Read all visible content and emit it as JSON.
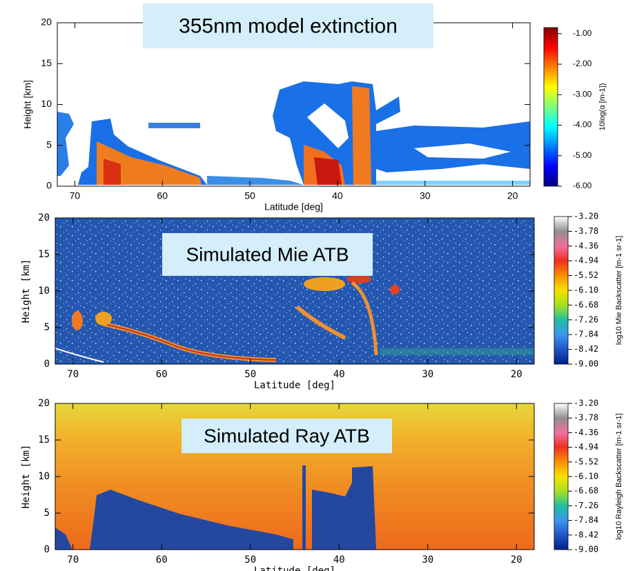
{
  "chart_data": [
    {
      "type": "heatmap",
      "title": "355nm model extinction",
      "xlabel": "Latitude [deg]",
      "ylabel": "Height [km]",
      "xlim": [
        72,
        18
      ],
      "xticks": [
        70,
        60,
        50,
        40,
        30,
        20
      ],
      "ylim": [
        0,
        20
      ],
      "yticks": [
        0,
        5,
        10,
        15,
        20
      ],
      "colorbar_label": "10log(α [m-1])",
      "clim": [
        -6.0,
        -0.8
      ],
      "cticks": [
        {
          "value": -1,
          "label": "-1.00"
        },
        {
          "value": -2,
          "label": "-2.00"
        },
        {
          "value": -3,
          "label": "-3.00"
        },
        {
          "value": -4,
          "label": "-4.00"
        },
        {
          "value": -5,
          "label": "-5.00"
        },
        {
          "value": -6,
          "label": "-6.00"
        }
      ],
      "colormap": [
        "#00007f",
        "#0000ff",
        "#007fff",
        "#00ffff",
        "#7fff7f",
        "#ffff00",
        "#ff7f00",
        "#ff0000",
        "#7f0000"
      ]
    },
    {
      "type": "heatmap",
      "title": "Simulated Mie ATB",
      "xlabel": "Latitude [deg]",
      "ylabel": "Height [km]",
      "xlim": [
        72,
        18
      ],
      "xticks": [
        70,
        60,
        50,
        40,
        30,
        20
      ],
      "ylim": [
        0,
        20
      ],
      "yticks": [
        0,
        5,
        10,
        15,
        20
      ],
      "colorbar_label": "log10 Mie Backscatter [m-1 sr-1]",
      "clim": [
        -9.0,
        -3.2
      ],
      "cticks": [
        {
          "value": -3.2,
          "label": "-3.20"
        },
        {
          "value": -3.78,
          "label": "-3.78"
        },
        {
          "value": -4.36,
          "label": "-4.36"
        },
        {
          "value": -4.94,
          "label": "-4.94"
        },
        {
          "value": -5.52,
          "label": "-5.52"
        },
        {
          "value": -6.1,
          "label": "-6.10"
        },
        {
          "value": -6.68,
          "label": "-6.68"
        },
        {
          "value": -7.26,
          "label": "-7.26"
        },
        {
          "value": -7.84,
          "label": "-7.84"
        },
        {
          "value": -8.42,
          "label": "-8.42"
        },
        {
          "value": -9,
          "label": "-9.00"
        }
      ],
      "colormap": [
        "#00208a",
        "#1f55c8",
        "#3a96f0",
        "#20c0a0",
        "#a8e020",
        "#f8e000",
        "#f89000",
        "#f03020",
        "#f070a0",
        "#909090",
        "#ffffff"
      ]
    },
    {
      "type": "heatmap",
      "title": "Simulated Ray ATB",
      "xlabel": "Latitude [deg]",
      "ylabel": "Height [km]",
      "xlim": [
        72,
        18
      ],
      "xticks": [
        70,
        60,
        50,
        40,
        30,
        20
      ],
      "ylim": [
        0,
        20
      ],
      "yticks": [
        0,
        5,
        10,
        15,
        20
      ],
      "colorbar_label": "log10 Rayleigh Backscatter [m-1 sr-1]",
      "clim": [
        -9.0,
        -3.2
      ],
      "cticks": [
        {
          "value": -3.2,
          "label": "-3.20"
        },
        {
          "value": -3.78,
          "label": "-3.78"
        },
        {
          "value": -4.36,
          "label": "-4.36"
        },
        {
          "value": -4.94,
          "label": "-4.94"
        },
        {
          "value": -5.52,
          "label": "-5.52"
        },
        {
          "value": -6.1,
          "label": "-6.10"
        },
        {
          "value": -6.68,
          "label": "-6.68"
        },
        {
          "value": -7.26,
          "label": "-7.26"
        },
        {
          "value": -7.84,
          "label": "-7.84"
        },
        {
          "value": -8.42,
          "label": "-8.42"
        },
        {
          "value": -9,
          "label": "-9.00"
        }
      ],
      "colormap": [
        "#00208a",
        "#1f55c8",
        "#3a96f0",
        "#20c0a0",
        "#a8e020",
        "#f8e000",
        "#f89000",
        "#f03020",
        "#f070a0",
        "#909090",
        "#ffffff"
      ]
    }
  ]
}
